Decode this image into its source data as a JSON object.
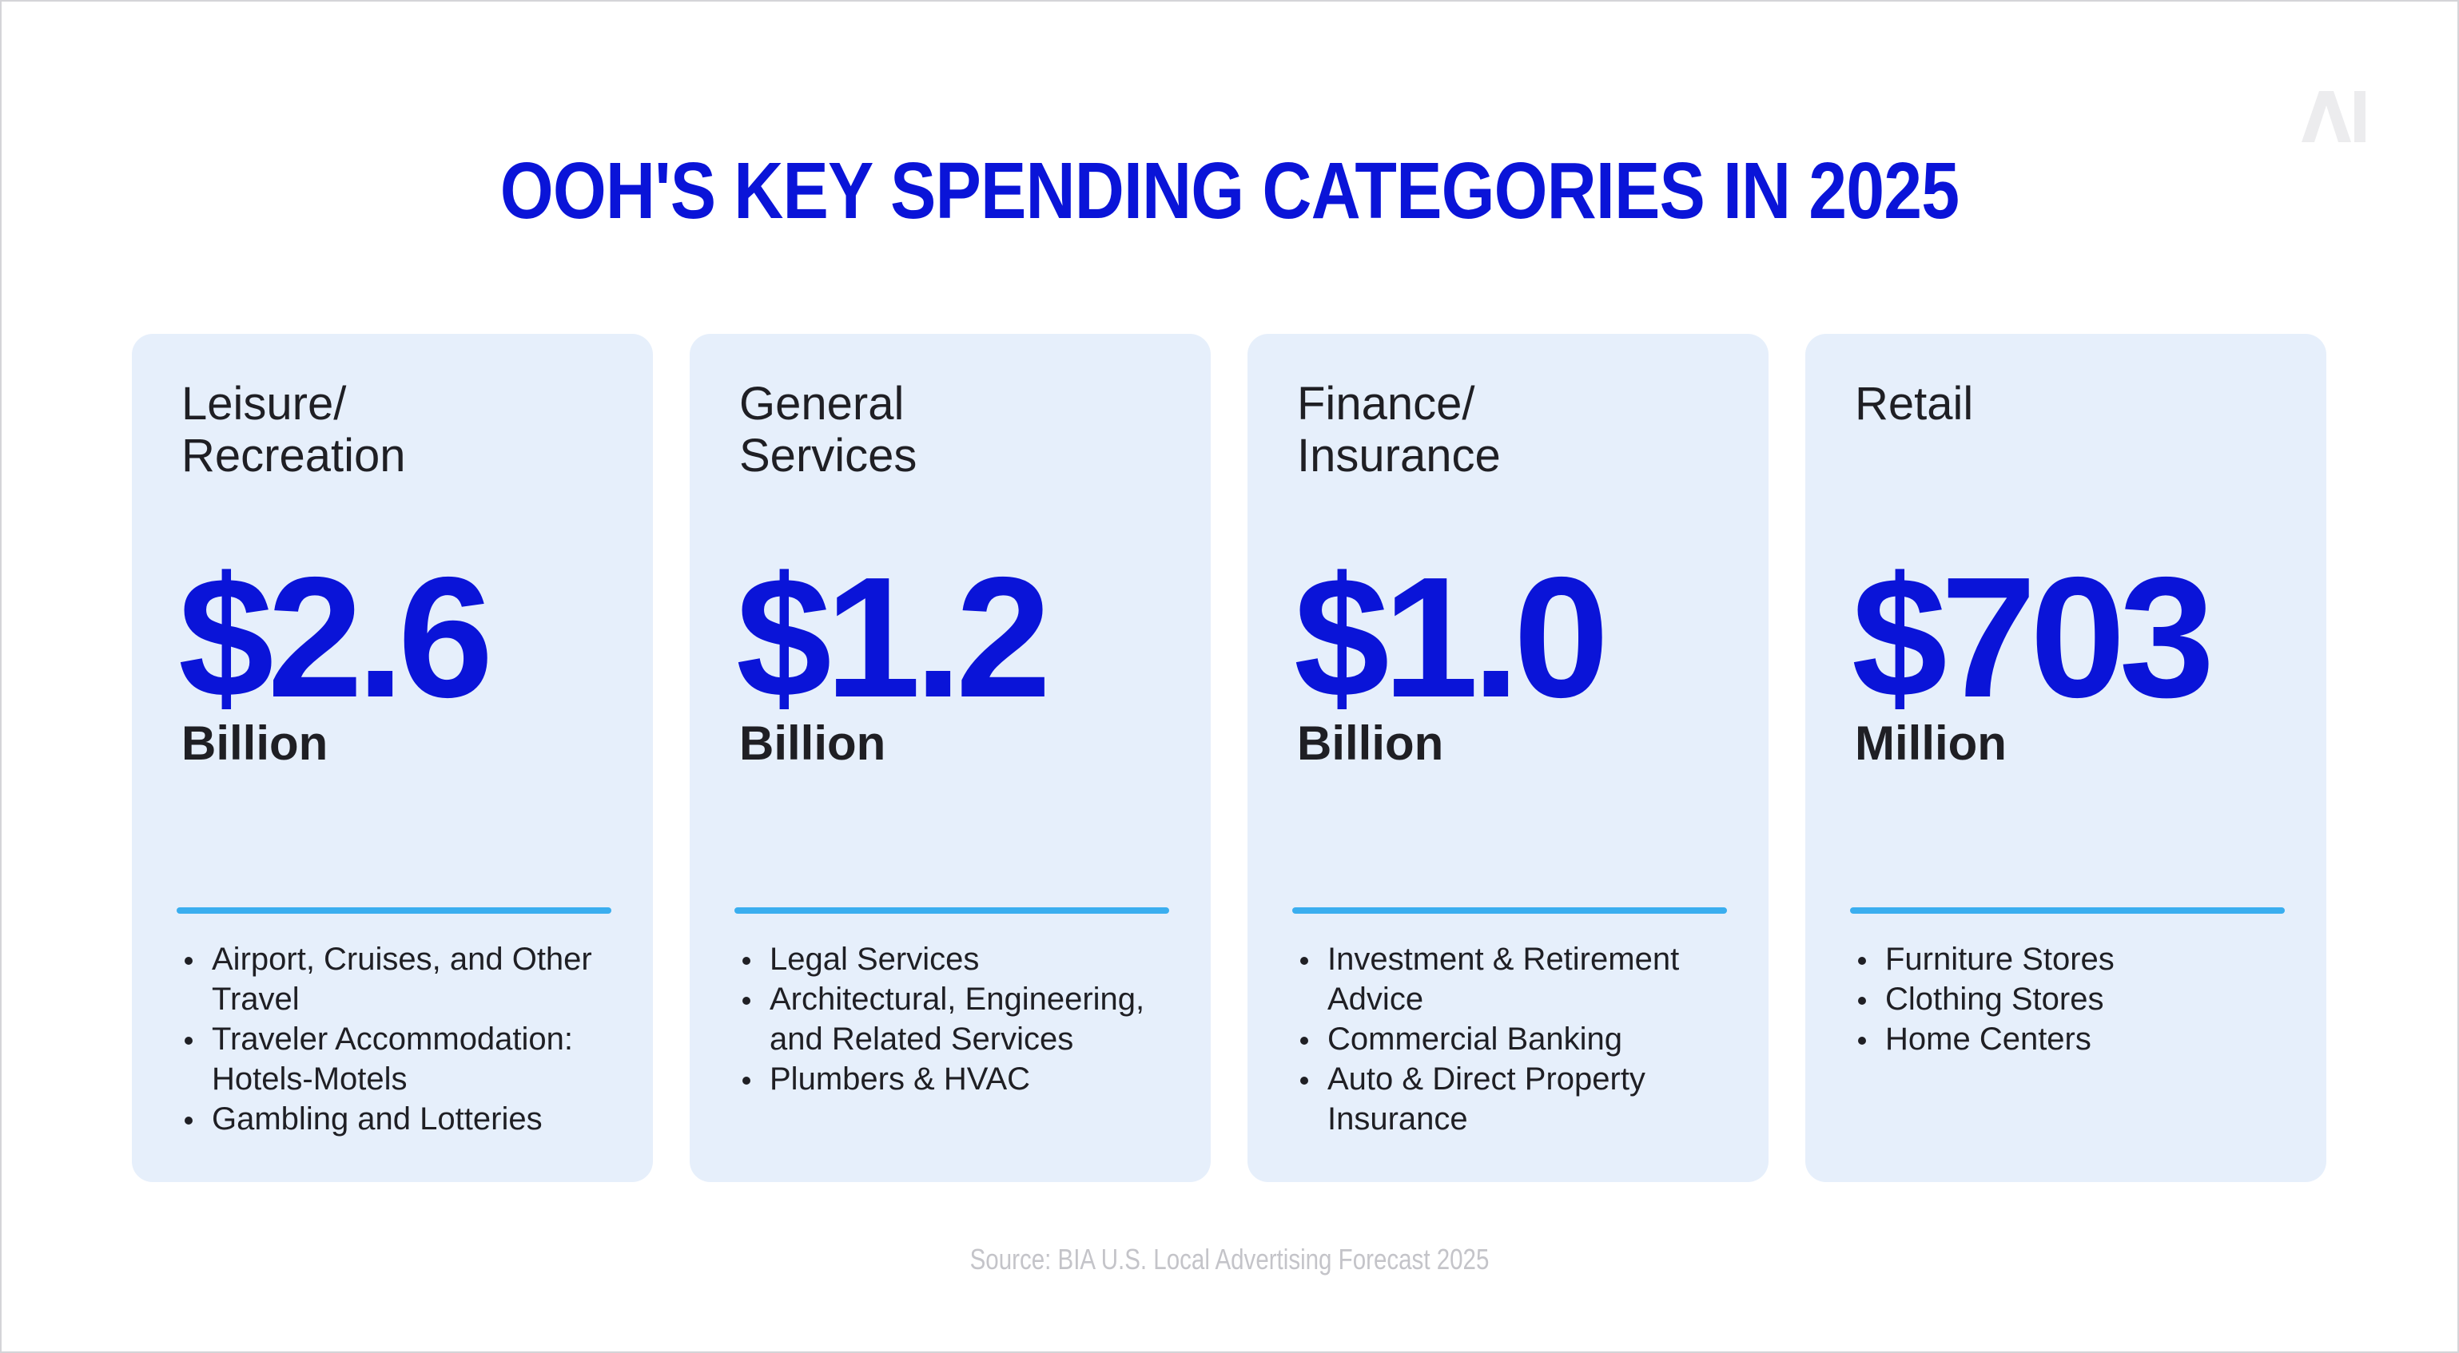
{
  "title": "OOH'S KEY SPENDING CATEGORIES IN 2025",
  "logo": "AI",
  "cards": [
    {
      "category": "Leisure/\nRecreation",
      "amount": "$2.6",
      "unit": "Billion",
      "items": [
        "Airport, Cruises, and Other Travel",
        "Traveler Accommodation: Hotels-Motels",
        "Gambling and Lotteries"
      ]
    },
    {
      "category": "General\nServices",
      "amount": "$1.2",
      "unit": "Billion",
      "items": [
        "Legal Services",
        "Architectural, Engineering, and Related Services",
        "Plumbers & HVAC"
      ]
    },
    {
      "category": "Finance/\nInsurance",
      "amount": "$1.0",
      "unit": "Billion",
      "items": [
        "Investment & Retirement Advice",
        "Commercial Banking",
        "Auto & Direct Property Insurance"
      ]
    },
    {
      "category": "Retail",
      "amount": "$703",
      "unit": "Million",
      "items": [
        "Furniture Stores",
        "Clothing Stores",
        "Home Centers"
      ]
    }
  ],
  "source": "Source: BIA U.S. Local Advertising Forecast 2025",
  "colors": {
    "accent": "#0a14d8",
    "card_bg": "#e6effb",
    "rule": "#3aaeef"
  }
}
